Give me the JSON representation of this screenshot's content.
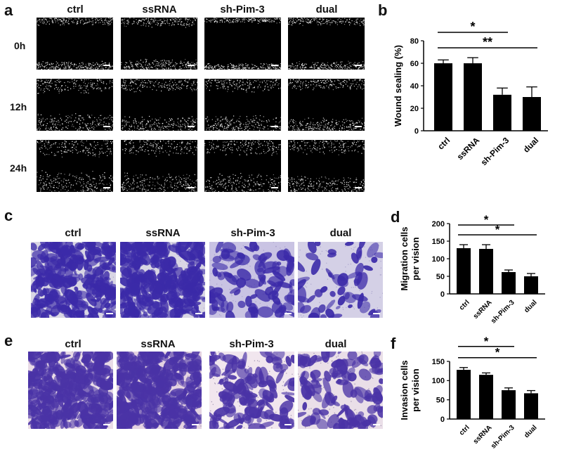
{
  "panels": {
    "a": "a",
    "b": "b",
    "c": "c",
    "d": "d",
    "e": "e",
    "f": "f"
  },
  "groups": [
    "ctrl",
    "ssRNA",
    "sh-Pim-3",
    "dual"
  ],
  "wound_assay": {
    "timepoints": [
      "0h",
      "12h",
      "24h"
    ]
  },
  "colors": {
    "bar": "#000000",
    "wound_background": "#000000",
    "cells": "#ffffff",
    "stain_dark": "#3b2aa8",
    "stain_light_bg": "#dcd6ec",
    "invasion_bg": "#f0e3ea"
  },
  "chart_data": [
    {
      "panel": "b",
      "type": "bar",
      "categories": [
        "ctrl",
        "ssRNA",
        "sh-Pim-3",
        "dual"
      ],
      "values": [
        60,
        60,
        32,
        30
      ],
      "errors": [
        3,
        5,
        6,
        9
      ],
      "ylabel": "Wound sealing (%)",
      "ylim": [
        0,
        80
      ],
      "yticks": [
        "0",
        "20",
        "40",
        "60",
        "80"
      ],
      "significance": [
        {
          "from": "ctrl",
          "to": "sh-Pim-3",
          "label": "*"
        },
        {
          "from": "ctrl",
          "to": "dual",
          "label": "**"
        }
      ]
    },
    {
      "panel": "d",
      "type": "bar",
      "categories": [
        "ctrl",
        "ssRNA",
        "sh-Pim-3",
        "dual"
      ],
      "values": [
        130,
        128,
        62,
        50
      ],
      "errors": [
        10,
        12,
        6,
        8
      ],
      "ylabel": "Migration cells per vision",
      "ylabel_lines": [
        "Migration cells",
        "per vision"
      ],
      "ylim": [
        0,
        200
      ],
      "yticks": [
        "0",
        "50",
        "100",
        "150",
        "200"
      ],
      "significance": [
        {
          "from": "ctrl",
          "to": "sh-Pim-3",
          "label": "*"
        },
        {
          "from": "ctrl",
          "to": "dual",
          "label": "*"
        }
      ]
    },
    {
      "panel": "f",
      "type": "bar",
      "categories": [
        "ctrl",
        "ssRNA",
        "sh-Pim-3",
        "dual"
      ],
      "values": [
        128,
        115,
        75,
        67
      ],
      "errors": [
        6,
        5,
        6,
        7
      ],
      "ylabel": "Invasion cells per vision",
      "ylabel_lines": [
        "Invasion cells",
        "per vision"
      ],
      "ylim": [
        0,
        150
      ],
      "yticks": [
        "0",
        "50",
        "100",
        "150"
      ],
      "significance": [
        {
          "from": "ctrl",
          "to": "sh-Pim-3",
          "label": "*"
        },
        {
          "from": "ctrl",
          "to": "dual",
          "label": "*"
        }
      ]
    }
  ]
}
